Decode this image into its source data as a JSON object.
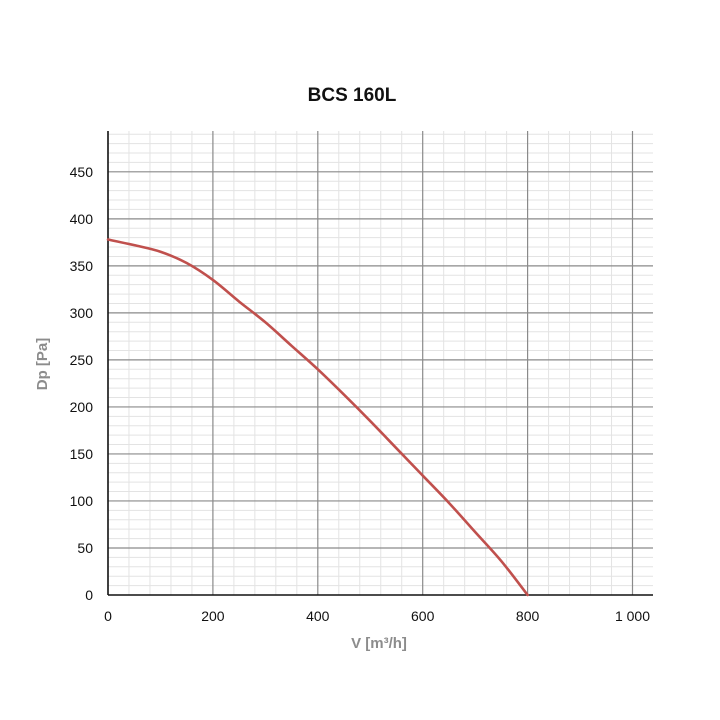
{
  "chart_data": {
    "type": "line",
    "title": "BCS 160L",
    "xlabel": "V [m³/h]",
    "ylabel": "Dp [Pa]",
    "xlim": [
      0,
      1000
    ],
    "ylim": [
      0,
      480
    ],
    "x_ticks": [
      0,
      200,
      400,
      600,
      800,
      1000
    ],
    "x_tick_labels": [
      "0",
      "200",
      "400",
      "600",
      "800",
      "1 000"
    ],
    "y_ticks": [
      0,
      50,
      100,
      150,
      200,
      250,
      300,
      350,
      400,
      450
    ],
    "y_tick_labels": [
      "0",
      "50",
      "100",
      "150",
      "200",
      "250",
      "300",
      "350",
      "400",
      "450"
    ],
    "grid": true,
    "minor_grid": true,
    "series": [
      {
        "color": "#c0504d",
        "x": [
          0,
          50,
          100,
          150,
          200,
          250,
          300,
          350,
          400,
          450,
          500,
          550,
          600,
          650,
          700,
          750,
          800
        ],
        "y": [
          378,
          372,
          365,
          353,
          335,
          312,
          290,
          265,
          240,
          213,
          185,
          156,
          127,
          98,
          67,
          36,
          0
        ]
      }
    ]
  }
}
